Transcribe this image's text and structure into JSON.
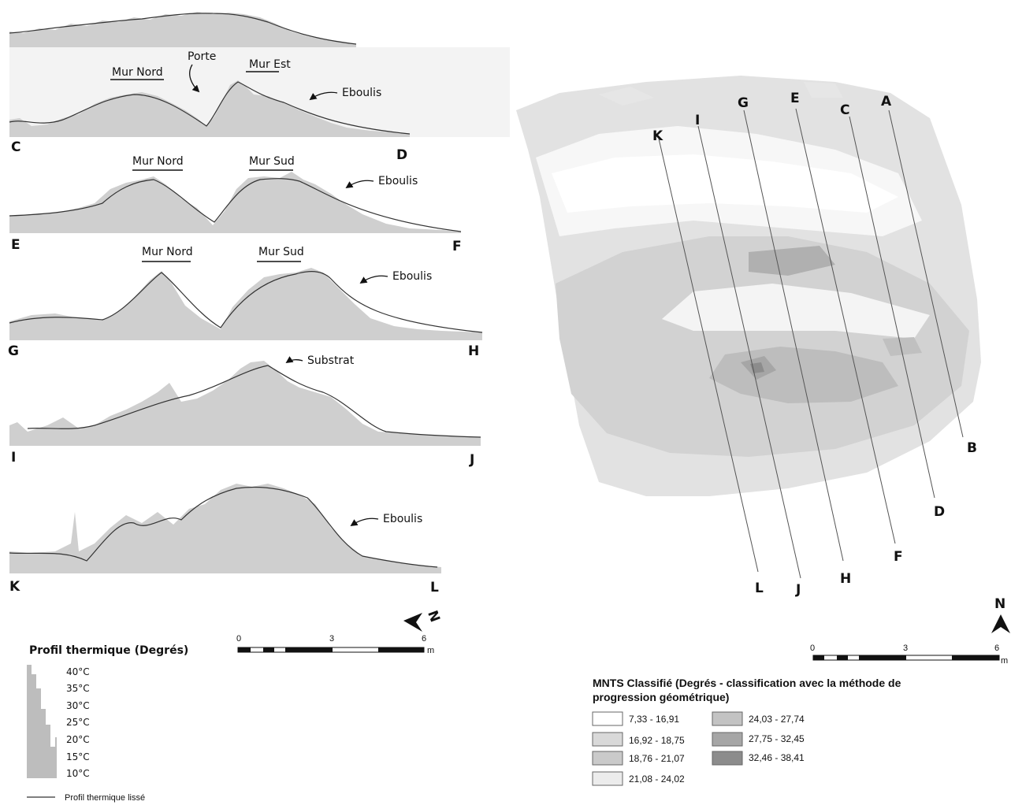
{
  "colors": {
    "profile_fill": "#cfcfcf",
    "profile_line": "#333333",
    "class_1": "#ffffff",
    "class_2": "#d9d9d9",
    "class_3": "#cacaca",
    "class_4": "#ececec",
    "class_5": "#c3c3c3",
    "class_6": "#a6a6a6",
    "class_7": "#8c8c8c"
  },
  "profiles": [
    {
      "start": "A",
      "end": "B",
      "annotations": []
    },
    {
      "start": "C",
      "end": "D",
      "annotations": [
        "Mur Nord",
        "Porte",
        "Mur Est",
        "Eboulis"
      ]
    },
    {
      "start": "E",
      "end": "F",
      "annotations": [
        "Mur Nord",
        "Mur Sud",
        "Eboulis"
      ]
    },
    {
      "start": "G",
      "end": "H",
      "annotations": [
        "Mur Nord",
        "Mur Sud",
        "Eboulis"
      ]
    },
    {
      "start": "I",
      "end": "J",
      "annotations": [
        "Substrat"
      ]
    },
    {
      "start": "K",
      "end": "L",
      "annotations": [
        "Eboulis"
      ]
    }
  ],
  "profile_scale": {
    "ticks": [
      "0",
      "3",
      "6"
    ],
    "unit": "m"
  },
  "profile_legend": {
    "title": "Profil thermique (Degrés)",
    "temps": [
      "40°C",
      "35°C",
      "30°C",
      "25°C",
      "20°C",
      "15°C",
      "10°C"
    ],
    "line_label": "Profil thermique lissé"
  },
  "map": {
    "section_letters": [
      "A",
      "B",
      "C",
      "D",
      "E",
      "F",
      "G",
      "H",
      "I",
      "J",
      "K",
      "L"
    ],
    "north": "N",
    "scale": {
      "ticks": [
        "0",
        "3",
        "6"
      ],
      "unit": "m"
    }
  },
  "map_legend": {
    "title_line1": "MNTS Classifié (Degrés - classification avec la méthode de",
    "title_line2": "progression géométrique)",
    "classes": [
      {
        "label": "7,33 - 16,91",
        "color": "#ffffff"
      },
      {
        "label": "16,92 - 18,75",
        "color": "#d9d9d9"
      },
      {
        "label": "18,76 - 21,07",
        "color": "#cacaca"
      },
      {
        "label": "21,08 - 24,02",
        "color": "#ececec"
      },
      {
        "label": "24,03 - 27,74",
        "color": "#c3c3c3"
      },
      {
        "label": "27,75 - 32,45",
        "color": "#a6a6a6"
      },
      {
        "label": "32,46 - 38,41",
        "color": "#8c8c8c"
      }
    ]
  }
}
